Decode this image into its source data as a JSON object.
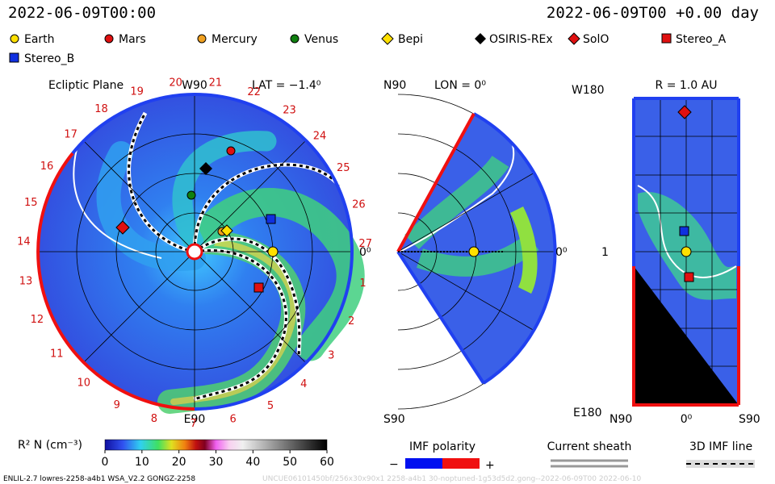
{
  "header": {
    "time": "2022-06-09T00:00",
    "run": "2022-06-09T00 +0.00 day"
  },
  "legend": [
    "Earth",
    "Mars",
    "Mercury",
    "Venus",
    "Bepi",
    "OSIRIS-REx",
    "SolO",
    "Stereo_A",
    "Stereo_B"
  ],
  "ecliptic": {
    "title": "Ecliptic Plane",
    "top": "W90",
    "lat": "LAT = −1.4⁰",
    "bottom": "E90",
    "right": "0⁰",
    "carrington": [
      "1",
      "2",
      "3",
      "4",
      "5",
      "6",
      "7",
      "8",
      "9",
      "10",
      "11",
      "12",
      "13",
      "14",
      "15",
      "16",
      "17",
      "18",
      "19",
      "20",
      "21",
      "22",
      "23",
      "24",
      "25",
      "26",
      "27"
    ]
  },
  "meridional": {
    "top": "N90",
    "lon": "LON = 0⁰",
    "bottom": "S90",
    "right": "0⁰"
  },
  "sphere": {
    "top": "W180",
    "radius": "R = 1.0 AU",
    "bottom": "E180",
    "left_value": "1",
    "x_left": "N90",
    "x_mid": "0⁰",
    "x_right": "S90"
  },
  "colorbar": {
    "label": "R² N (cm⁻³)",
    "range": [
      0,
      60
    ],
    "ticks": [
      0,
      10,
      20,
      30,
      40,
      50,
      60
    ]
  },
  "imf": {
    "title": "IMF polarity",
    "minus": "−",
    "plus": "+"
  },
  "sheath": "Current sheath",
  "imf_line": "3D IMF line",
  "footer": {
    "left": "ENLIL-2.7 lowres-2258-a4b1 WSA_V2.2 GONGZ-2258",
    "right": "UNCUE06101450bf/256x30x90x1 2258-a4b1 30-noptuned-1g53d5d2.gong--2022-06-09T00  2022-06-10"
  }
}
